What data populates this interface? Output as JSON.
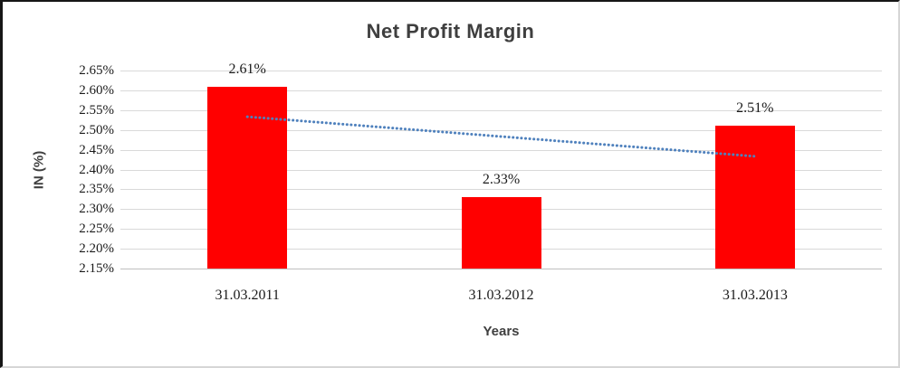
{
  "chart_data": {
    "type": "bar",
    "title": "Net Profit Margin",
    "categories": [
      "31.03.2011",
      "31.03.2012",
      "31.03.2013"
    ],
    "values": [
      2.61,
      2.33,
      2.51
    ],
    "data_labels": [
      "2.61%",
      "2.33%",
      "2.51%"
    ],
    "xlabel": "Years",
    "ylabel": "IN (%)",
    "ylim": [
      2.15,
      2.65
    ],
    "ytick_step": 0.05,
    "ytick_labels": [
      "2.65%",
      "2.60%",
      "2.55%",
      "2.50%",
      "2.45%",
      "2.40%",
      "2.35%",
      "2.30%",
      "2.25%",
      "2.20%",
      "2.15%"
    ],
    "grid": true,
    "legend": "none",
    "colors": {
      "bar": "#FF0000",
      "trendline": "#4F81BD",
      "gridline": "#D9D9D9",
      "axis_line": "#BFBFBF",
      "title_text": "#3F3F3F",
      "axis_title_text": "#404040",
      "tick_text": "#1A1A1A",
      "data_label_text": "#1A1A1A"
    },
    "trendline": {
      "type": "linear",
      "style": "dotted"
    }
  }
}
